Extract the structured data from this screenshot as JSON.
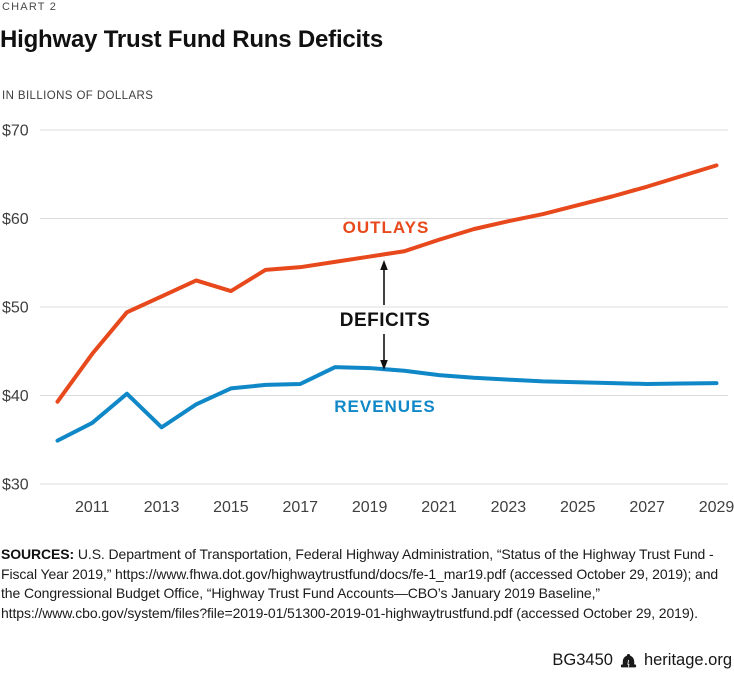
{
  "header": {
    "kicker": "CHART 2",
    "title": "Highway Trust Fund Runs Deficits",
    "units_label": "IN BILLIONS OF DOLLARS"
  },
  "chart_data": {
    "type": "line",
    "title": "Highway Trust Fund Runs Deficits",
    "ylabel": "IN BILLIONS OF DOLLARS",
    "x": [
      2010,
      2011,
      2012,
      2013,
      2014,
      2015,
      2016,
      2017,
      2018,
      2019,
      2020,
      2021,
      2022,
      2023,
      2024,
      2025,
      2026,
      2027,
      2028,
      2029
    ],
    "series": [
      {
        "name": "OUTLAYS",
        "color": "#E8491C",
        "values": [
          39.3,
          44.7,
          49.4,
          51.2,
          53.0,
          51.8,
          54.2,
          54.5,
          55.1,
          55.7,
          56.3,
          57.6,
          58.8,
          59.7,
          60.5,
          61.5,
          62.5,
          63.6,
          64.8,
          66.0
        ]
      },
      {
        "name": "REVENUES",
        "color": "#1088C8",
        "values": [
          34.9,
          36.9,
          40.2,
          36.4,
          39.0,
          40.8,
          41.2,
          41.3,
          43.2,
          43.1,
          42.8,
          42.3,
          42.0,
          41.8,
          41.6,
          41.5,
          41.4,
          41.3,
          41.35,
          41.4
        ]
      }
    ],
    "ylim": [
      30,
      70
    ],
    "yticks": [
      70,
      60,
      50,
      40,
      30
    ],
    "ytick_labels": [
      "$70",
      "$60",
      "$50",
      "$40",
      "$30"
    ],
    "xticks": [
      2011,
      2013,
      2015,
      2017,
      2019,
      2021,
      2023,
      2025,
      2027,
      2029
    ],
    "grid": "horizontal",
    "legend_position": "inline-labels",
    "annotation": {
      "text": "DEFICITS",
      "style": "double-arrow-between-series",
      "near_x": 2019
    }
  },
  "sources": {
    "label": "SOURCES:",
    "text": " U.S. Department of Transportation, Federal Highway Administration, “Status of the Highway Trust Fund - Fiscal Year 2019,” https://www.fhwa.dot.gov/highwaytrustfund/docs/fe-1_mar19.pdf (accessed October 29, 2019); and the Congressional Budget Office, “Highway Trust Fund Accounts—CBO’s January 2019 Baseline,” https://www.cbo.gov/system/files?file=2019-01/51300-2019-01-highwaytrustfund.pdf (accessed October 29, 2019)."
  },
  "footer": {
    "report_id": "BG3450",
    "site": "heritage.org"
  },
  "colors": {
    "outlays": "#E8491C",
    "revenues": "#1088C8",
    "grid": "#DCDCDC",
    "annotation": "#111111"
  }
}
